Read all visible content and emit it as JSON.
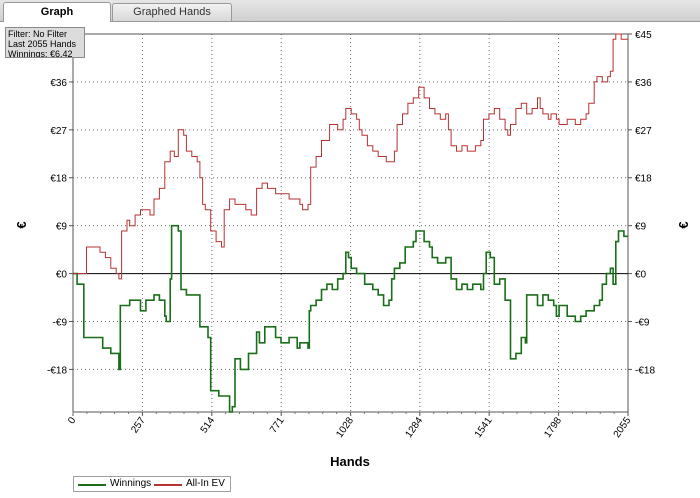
{
  "tabs": [
    {
      "label": "Graph",
      "active": true
    },
    {
      "label": "Graphed Hands",
      "active": false
    }
  ],
  "filter_box": {
    "filter_text": "Filter: No Filter",
    "hands_text": "Last  2055 Hands",
    "winnings_text": "Winnings: €6.42"
  },
  "colors": {
    "winnings": "#1a6e1a",
    "all_in_ev": "#b83232",
    "grid": "#6e6e6e",
    "zero_line": "#000000"
  },
  "chart_data": {
    "type": "line",
    "xlabel": "Hands",
    "ylabel": "€",
    "xlim": [
      0,
      2055
    ],
    "ylim": [
      -26,
      45
    ],
    "x_ticks": [
      0,
      257,
      514,
      771,
      1028,
      1284,
      1541,
      1798,
      2055
    ],
    "y_ticks": [
      -18,
      -9,
      0,
      9,
      18,
      27,
      36,
      45
    ],
    "y_tick_labels": [
      "-€18",
      "-€9",
      "€0",
      "€9",
      "€18",
      "€27",
      "€36",
      "€45"
    ],
    "grid": true,
    "legend_position": "bottom-left",
    "legend": [
      "Winnings",
      "All-In EV"
    ],
    "series": [
      {
        "name": "Winnings",
        "color": "#1a6e1a",
        "points": [
          [
            0,
            0
          ],
          [
            15,
            -2
          ],
          [
            40,
            -12
          ],
          [
            80,
            -12
          ],
          [
            110,
            -14
          ],
          [
            140,
            -15
          ],
          [
            170,
            -18
          ],
          [
            175,
            -6
          ],
          [
            210,
            -5
          ],
          [
            250,
            -7
          ],
          [
            270,
            -5
          ],
          [
            300,
            -4
          ],
          [
            320,
            -5
          ],
          [
            340,
            -8
          ],
          [
            345,
            -9
          ],
          [
            360,
            -1
          ],
          [
            365,
            9
          ],
          [
            390,
            8
          ],
          [
            400,
            -3
          ],
          [
            420,
            -4
          ],
          [
            470,
            -10
          ],
          [
            500,
            -12
          ],
          [
            510,
            -22
          ],
          [
            540,
            -23
          ],
          [
            580,
            -26
          ],
          [
            590,
            -25
          ],
          [
            600,
            -16
          ],
          [
            620,
            -18
          ],
          [
            650,
            -15
          ],
          [
            680,
            -11
          ],
          [
            690,
            -13
          ],
          [
            710,
            -10
          ],
          [
            735,
            -10
          ],
          [
            750,
            -12
          ],
          [
            770,
            -13
          ],
          [
            800,
            -12
          ],
          [
            830,
            -14
          ],
          [
            840,
            -13
          ],
          [
            870,
            -14
          ],
          [
            875,
            -7
          ],
          [
            880,
            -6
          ],
          [
            900,
            -5
          ],
          [
            920,
            -3
          ],
          [
            940,
            -2
          ],
          [
            960,
            -3
          ],
          [
            980,
            -1
          ],
          [
            1000,
            0
          ],
          [
            1010,
            4
          ],
          [
            1020,
            3
          ],
          [
            1030,
            1
          ],
          [
            1050,
            0
          ],
          [
            1080,
            -2
          ],
          [
            1110,
            -3
          ],
          [
            1130,
            -4
          ],
          [
            1150,
            -6
          ],
          [
            1170,
            -5
          ],
          [
            1180,
            -1
          ],
          [
            1190,
            1
          ],
          [
            1210,
            2
          ],
          [
            1230,
            5
          ],
          [
            1260,
            6
          ],
          [
            1270,
            8
          ],
          [
            1290,
            8
          ],
          [
            1300,
            6
          ],
          [
            1320,
            5
          ],
          [
            1330,
            3
          ],
          [
            1350,
            2
          ],
          [
            1380,
            3
          ],
          [
            1400,
            -1
          ],
          [
            1420,
            -3
          ],
          [
            1440,
            -2
          ],
          [
            1460,
            -3
          ],
          [
            1480,
            -2
          ],
          [
            1510,
            -3
          ],
          [
            1520,
            0
          ],
          [
            1530,
            4
          ],
          [
            1545,
            3
          ],
          [
            1560,
            -2
          ],
          [
            1580,
            -1
          ],
          [
            1600,
            -5
          ],
          [
            1620,
            -16
          ],
          [
            1640,
            -15
          ],
          [
            1660,
            -12
          ],
          [
            1675,
            -13
          ],
          [
            1680,
            -4
          ],
          [
            1700,
            -4
          ],
          [
            1720,
            -6
          ],
          [
            1740,
            -4
          ],
          [
            1760,
            -5
          ],
          [
            1780,
            -6
          ],
          [
            1790,
            -8
          ],
          [
            1800,
            -6
          ],
          [
            1830,
            -8
          ],
          [
            1860,
            -9
          ],
          [
            1880,
            -8
          ],
          [
            1900,
            -7
          ],
          [
            1930,
            -6
          ],
          [
            1950,
            -5
          ],
          [
            1960,
            -2
          ],
          [
            1975,
            0
          ],
          [
            1990,
            1
          ],
          [
            2000,
            -2
          ],
          [
            2010,
            6
          ],
          [
            2020,
            8
          ],
          [
            2040,
            7
          ],
          [
            2055,
            7
          ]
        ]
      },
      {
        "name": "All-In EV",
        "color": "#b83232",
        "points": [
          [
            0,
            0
          ],
          [
            40,
            0
          ],
          [
            50,
            5
          ],
          [
            80,
            5
          ],
          [
            100,
            4
          ],
          [
            120,
            3
          ],
          [
            140,
            1
          ],
          [
            160,
            0
          ],
          [
            170,
            -1
          ],
          [
            180,
            8
          ],
          [
            200,
            10
          ],
          [
            210,
            9
          ],
          [
            230,
            11
          ],
          [
            250,
            12
          ],
          [
            270,
            12
          ],
          [
            285,
            11
          ],
          [
            300,
            14
          ],
          [
            320,
            16
          ],
          [
            340,
            21
          ],
          [
            360,
            23
          ],
          [
            375,
            22
          ],
          [
            390,
            27
          ],
          [
            410,
            26
          ],
          [
            420,
            23
          ],
          [
            440,
            22
          ],
          [
            460,
            21
          ],
          [
            470,
            18
          ],
          [
            480,
            13
          ],
          [
            490,
            12
          ],
          [
            510,
            8
          ],
          [
            530,
            6
          ],
          [
            550,
            5
          ],
          [
            560,
            12
          ],
          [
            580,
            14
          ],
          [
            600,
            13
          ],
          [
            620,
            13
          ],
          [
            640,
            12
          ],
          [
            660,
            11
          ],
          [
            680,
            16
          ],
          [
            700,
            17
          ],
          [
            720,
            16
          ],
          [
            750,
            15
          ],
          [
            790,
            15
          ],
          [
            800,
            14
          ],
          [
            820,
            14
          ],
          [
            840,
            13
          ],
          [
            850,
            12
          ],
          [
            870,
            13
          ],
          [
            880,
            20
          ],
          [
            900,
            22
          ],
          [
            920,
            25
          ],
          [
            950,
            28
          ],
          [
            980,
            27
          ],
          [
            1000,
            29
          ],
          [
            1010,
            31
          ],
          [
            1030,
            30
          ],
          [
            1050,
            29
          ],
          [
            1060,
            27
          ],
          [
            1070,
            26
          ],
          [
            1090,
            24
          ],
          [
            1110,
            23
          ],
          [
            1130,
            22
          ],
          [
            1160,
            21
          ],
          [
            1190,
            23
          ],
          [
            1200,
            28
          ],
          [
            1220,
            30
          ],
          [
            1240,
            32
          ],
          [
            1260,
            33
          ],
          [
            1280,
            35
          ],
          [
            1300,
            33
          ],
          [
            1320,
            31
          ],
          [
            1340,
            30
          ],
          [
            1360,
            29
          ],
          [
            1380,
            30
          ],
          [
            1390,
            27
          ],
          [
            1400,
            24
          ],
          [
            1420,
            23
          ],
          [
            1440,
            24
          ],
          [
            1460,
            23
          ],
          [
            1490,
            24
          ],
          [
            1510,
            25
          ],
          [
            1520,
            29
          ],
          [
            1540,
            30
          ],
          [
            1560,
            31
          ],
          [
            1580,
            29
          ],
          [
            1600,
            27
          ],
          [
            1610,
            26
          ],
          [
            1620,
            28
          ],
          [
            1640,
            31
          ],
          [
            1660,
            32
          ],
          [
            1680,
            30
          ],
          [
            1700,
            31
          ],
          [
            1720,
            33
          ],
          [
            1730,
            31
          ],
          [
            1740,
            30
          ],
          [
            1760,
            29
          ],
          [
            1770,
            30
          ],
          [
            1790,
            29
          ],
          [
            1800,
            28
          ],
          [
            1830,
            29
          ],
          [
            1860,
            28
          ],
          [
            1880,
            29
          ],
          [
            1900,
            30
          ],
          [
            1910,
            32
          ],
          [
            1930,
            36
          ],
          [
            1940,
            37
          ],
          [
            1960,
            36
          ],
          [
            1980,
            37
          ],
          [
            1990,
            38
          ],
          [
            2000,
            44
          ],
          [
            2010,
            45
          ],
          [
            2030,
            44
          ],
          [
            2055,
            44
          ]
        ]
      }
    ]
  }
}
